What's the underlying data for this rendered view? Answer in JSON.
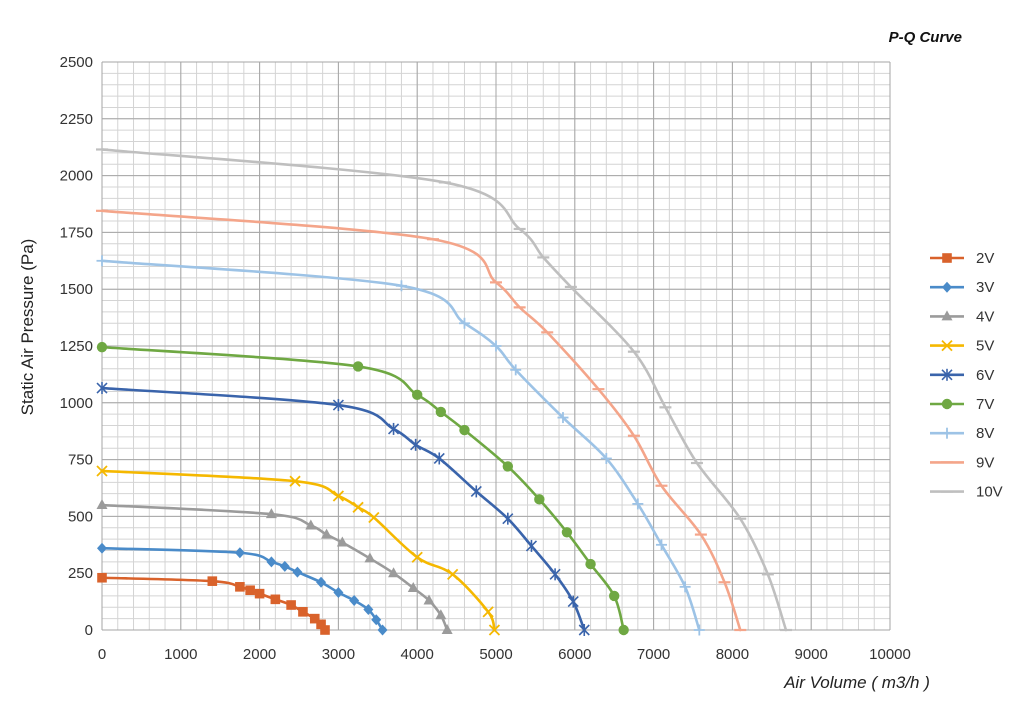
{
  "chart_data": {
    "type": "line",
    "title": "P-Q Curve",
    "xlabel": "Air Volume ( m3/h )",
    "ylabel": "Static Air Pressure  (Pa)",
    "xlim": [
      0,
      10000
    ],
    "ylim": [
      0,
      2500
    ],
    "x_ticks": [
      0,
      1000,
      2000,
      3000,
      4000,
      5000,
      6000,
      7000,
      8000,
      9000,
      10000
    ],
    "y_ticks": [
      0,
      250,
      500,
      750,
      1000,
      1250,
      1500,
      1750,
      2000,
      2250,
      2500
    ],
    "x_tick_labels": [
      "0",
      "1000",
      "2000",
      "3000",
      "4000",
      "5000",
      "6000",
      "7000",
      "8000",
      "9000",
      "10000"
    ],
    "y_tick_labels": [
      "0",
      "250",
      "500",
      "750",
      "1000",
      "1250",
      "1500",
      "1750",
      "2000",
      "2250",
      "2500"
    ],
    "grid": true,
    "legend_position": "right",
    "series": [
      {
        "name": "2V",
        "color": "#D9622B",
        "marker": "square",
        "x": [
          0,
          1400,
          1750,
          1880,
          2000,
          2200,
          2400,
          2550,
          2700,
          2780,
          2830
        ],
        "y": [
          230,
          215,
          190,
          175,
          160,
          135,
          110,
          80,
          50,
          25,
          0
        ]
      },
      {
        "name": "3V",
        "color": "#4A8BC9",
        "marker": "diamond",
        "x": [
          0,
          1750,
          2150,
          2320,
          2480,
          2780,
          3000,
          3200,
          3380,
          3480,
          3560
        ],
        "y": [
          360,
          340,
          300,
          280,
          255,
          210,
          165,
          130,
          90,
          45,
          0
        ]
      },
      {
        "name": "4V",
        "color": "#9B9B9B",
        "marker": "triangle",
        "x": [
          0,
          2150,
          2650,
          2850,
          3050,
          3400,
          3700,
          3950,
          4150,
          4300,
          4380
        ],
        "y": [
          550,
          510,
          460,
          420,
          385,
          315,
          250,
          185,
          130,
          65,
          0
        ]
      },
      {
        "name": "5V",
        "color": "#F5B800",
        "marker": "x",
        "x": [
          0,
          2450,
          3000,
          3250,
          3450,
          4000,
          4450,
          4900,
          4980
        ],
        "y": [
          700,
          655,
          590,
          540,
          495,
          320,
          245,
          80,
          0
        ]
      },
      {
        "name": "6V",
        "color": "#3A64AB",
        "marker": "star",
        "x": [
          0,
          3000,
          3700,
          3980,
          4280,
          4750,
          5150,
          5450,
          5750,
          5980,
          6120
        ],
        "y": [
          1065,
          990,
          885,
          815,
          755,
          610,
          490,
          370,
          245,
          125,
          0
        ]
      },
      {
        "name": "7V",
        "color": "#6FA843",
        "marker": "circle",
        "x": [
          0,
          3250,
          4000,
          4300,
          4600,
          5150,
          5550,
          5900,
          6200,
          6500,
          6620
        ],
        "y": [
          1245,
          1160,
          1035,
          960,
          880,
          720,
          575,
          430,
          290,
          150,
          0
        ]
      },
      {
        "name": "8V",
        "color": "#9DC3E6",
        "marker": "plus",
        "x": [
          0,
          3800,
          4600,
          5000,
          5250,
          5850,
          6400,
          6800,
          7100,
          7400,
          7580
        ],
        "y": [
          1625,
          1515,
          1350,
          1250,
          1145,
          935,
          755,
          555,
          375,
          190,
          0
        ]
      },
      {
        "name": "9V",
        "color": "#F4A58A",
        "marker": "dash",
        "x": [
          0,
          4200,
          5000,
          5300,
          5650,
          6300,
          6750,
          7100,
          7600,
          7900,
          8100
        ],
        "y": [
          1845,
          1720,
          1530,
          1420,
          1310,
          1060,
          855,
          635,
          420,
          210,
          0
        ]
      },
      {
        "name": "10V",
        "color": "#BFBFBF",
        "marker": "dash",
        "x": [
          0,
          4350,
          5300,
          5600,
          5950,
          6750,
          7150,
          7550,
          8100,
          8450,
          8680
        ],
        "y": [
          2115,
          1970,
          1765,
          1640,
          1510,
          1225,
          980,
          735,
          490,
          245,
          0
        ]
      }
    ]
  }
}
